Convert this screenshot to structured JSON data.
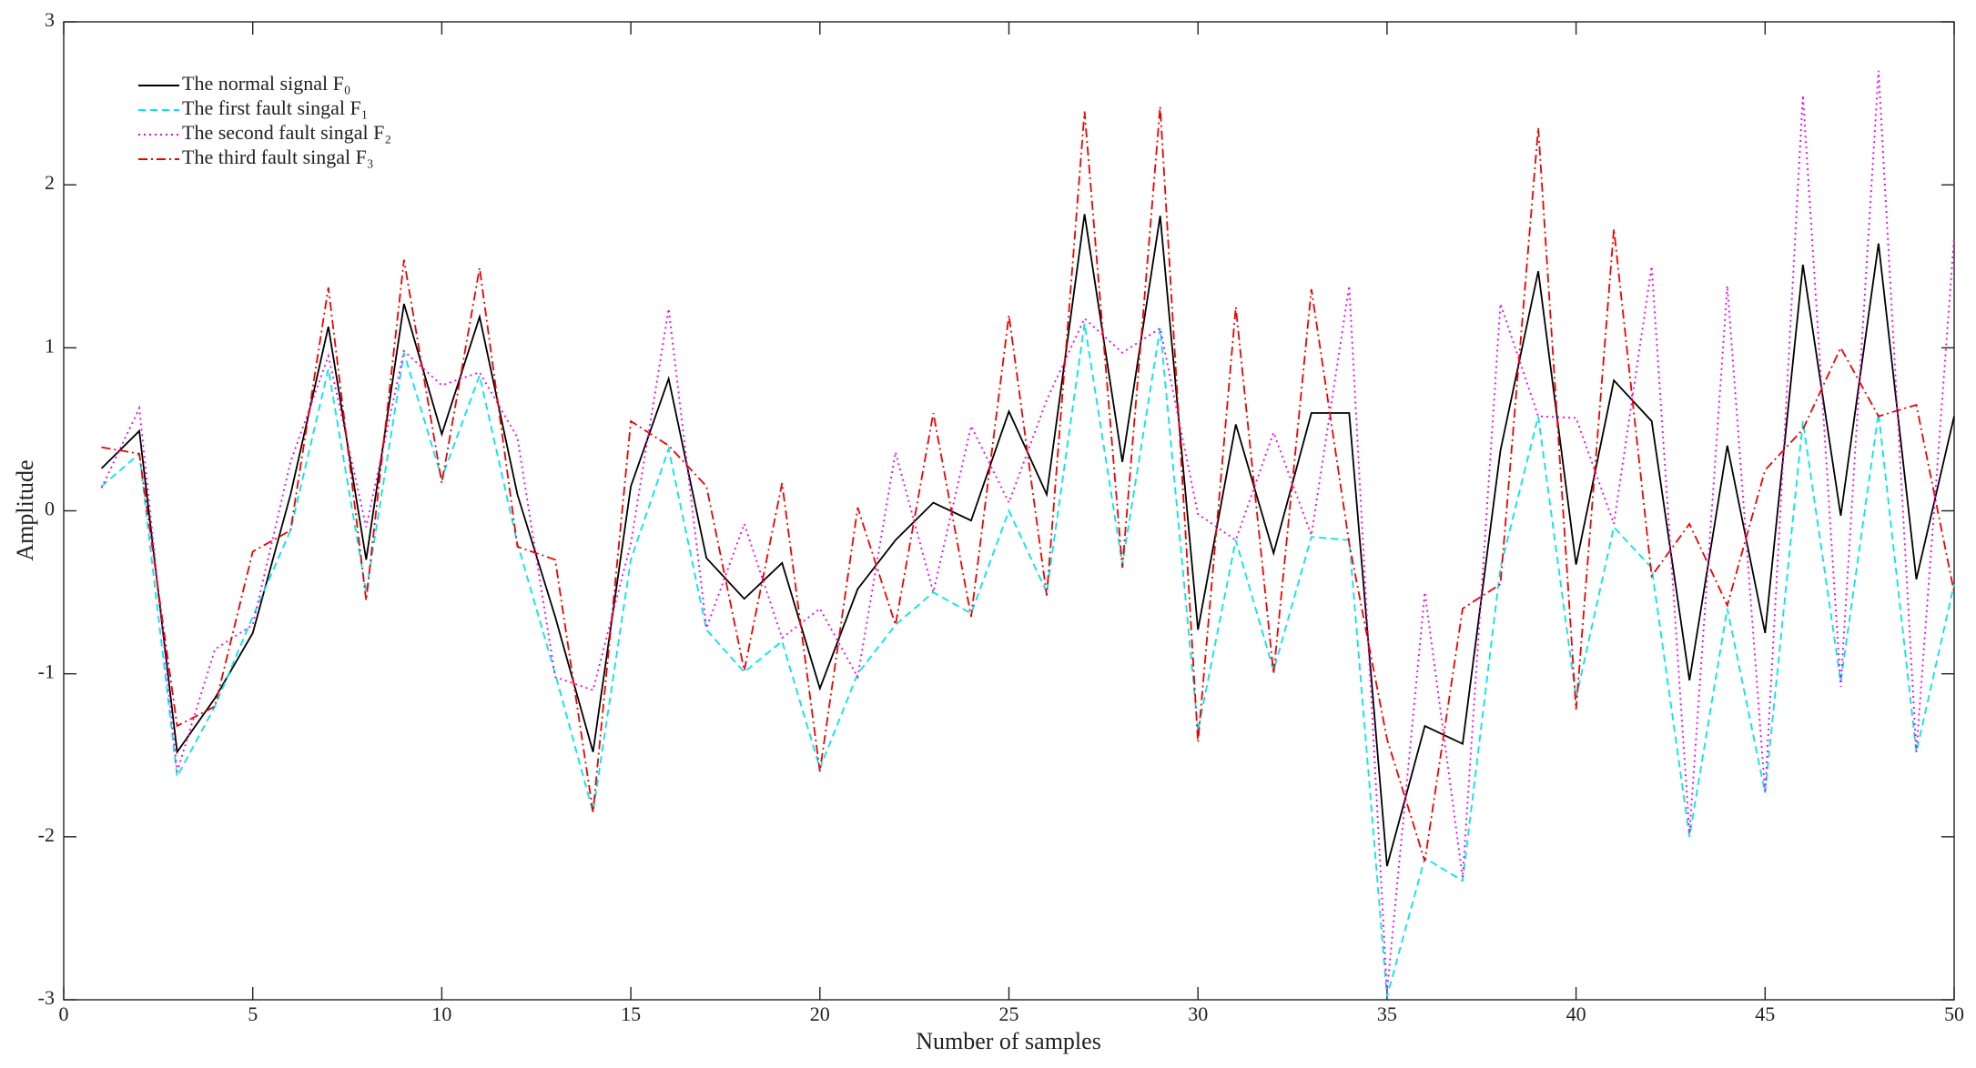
{
  "chart_data": {
    "type": "line",
    "xlabel": "Number of samples",
    "ylabel": "Amplitude",
    "x": [
      1,
      2,
      3,
      4,
      5,
      6,
      7,
      8,
      9,
      10,
      11,
      12,
      13,
      14,
      15,
      16,
      17,
      18,
      19,
      20,
      21,
      22,
      23,
      24,
      25,
      26,
      27,
      28,
      29,
      30,
      31,
      32,
      33,
      34,
      35,
      36,
      37,
      38,
      39,
      40,
      41,
      42,
      43,
      44,
      45,
      46,
      47,
      48,
      49,
      50
    ],
    "series": [
      {
        "name": "The normal signal F₀",
        "color": "#000000",
        "linestyle": "solid",
        "values": [
          0.26,
          0.49,
          -1.48,
          -1.15,
          -0.75,
          0.1,
          1.13,
          -0.3,
          1.27,
          0.47,
          1.19,
          0.1,
          -0.65,
          -1.48,
          0.15,
          0.81,
          -0.29,
          -0.54,
          -0.32,
          -1.09,
          -0.48,
          -0.18,
          0.05,
          -0.06,
          0.61,
          0.1,
          1.82,
          0.3,
          1.81,
          -0.73,
          0.53,
          -0.26,
          0.6,
          0.6,
          -2.18,
          -1.32,
          -1.43,
          0.37,
          1.47,
          -0.33,
          0.8,
          0.55,
          -1.04,
          0.4,
          -0.75,
          1.51,
          -0.03,
          1.64,
          -0.42,
          0.58
        ]
      },
      {
        "name": "The first fault singal F₁",
        "color": "#00e5ee",
        "linestyle": "dashed",
        "values": [
          0.15,
          0.35,
          -1.63,
          -1.2,
          -0.65,
          -0.12,
          0.87,
          -0.5,
          0.97,
          0.2,
          0.83,
          -0.2,
          -1.0,
          -1.85,
          -0.3,
          0.38,
          -0.73,
          -0.99,
          -0.8,
          -1.58,
          -1.0,
          -0.7,
          -0.5,
          -0.63,
          0.0,
          -0.5,
          1.15,
          -0.33,
          1.12,
          -1.35,
          -0.18,
          -0.98,
          -0.16,
          -0.18,
          -2.98,
          -2.13,
          -2.27,
          -0.35,
          0.58,
          -1.15,
          -0.1,
          -0.35,
          -2.0,
          -0.6,
          -1.73,
          0.55,
          -1.05,
          0.6,
          -1.48,
          -0.45
        ]
      },
      {
        "name": "The second fault singal F₂",
        "color": "#ee00ee",
        "linestyle": "dotted",
        "values": [
          0.14,
          0.63,
          -1.6,
          -0.85,
          -0.7,
          0.3,
          0.95,
          -0.1,
          0.98,
          0.77,
          0.85,
          0.45,
          -1.02,
          -1.1,
          -0.2,
          1.24,
          -0.72,
          -0.08,
          -0.78,
          -0.6,
          -1.02,
          0.36,
          -0.5,
          0.52,
          0.05,
          0.68,
          1.18,
          0.97,
          1.12,
          -0.02,
          -0.18,
          0.48,
          -0.15,
          1.38,
          -2.95,
          -0.5,
          -2.25,
          1.27,
          0.58,
          0.57,
          -0.08,
          1.5,
          -1.98,
          1.38,
          -1.73,
          2.55,
          -1.08,
          2.7,
          -1.48,
          1.68
        ]
      },
      {
        "name": "The third fault singal F₃",
        "color": "#ee0000",
        "linestyle": "dashdot",
        "values": [
          0.39,
          0.35,
          -1.32,
          -1.2,
          -0.25,
          -0.12,
          1.37,
          -0.55,
          1.54,
          0.17,
          1.49,
          -0.22,
          -0.3,
          -1.85,
          0.55,
          0.4,
          0.15,
          -0.98,
          0.17,
          -1.6,
          0.02,
          -0.7,
          0.6,
          -0.65,
          1.2,
          -0.52,
          2.45,
          -0.35,
          2.48,
          -1.42,
          1.25,
          -1.0,
          1.36,
          -0.2,
          -1.4,
          -2.15,
          -0.6,
          -0.45,
          2.35,
          -1.22,
          1.73,
          -0.4,
          -0.08,
          -0.58,
          0.25,
          0.5,
          1.0,
          0.58,
          0.65,
          -0.5
        ]
      }
    ],
    "xlim": [
      0,
      50
    ],
    "xticks": [
      0,
      5,
      10,
      15,
      20,
      25,
      30,
      35,
      40,
      45,
      50
    ],
    "ylim": [
      -3,
      3
    ],
    "yticks": [
      -3,
      -2,
      -1,
      0,
      1,
      2,
      3
    ],
    "grid": false,
    "legend": "upper left"
  }
}
